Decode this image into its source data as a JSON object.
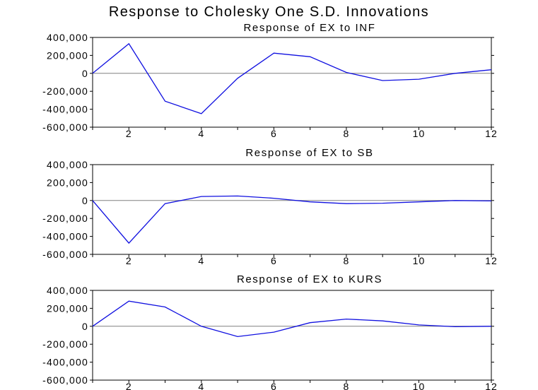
{
  "title": "Response to Cholesky One S.D. Innovations",
  "line_color": "#1010e0",
  "zero_line_color": "#808080",
  "chart_data": [
    {
      "type": "line",
      "title": "Response of EX to INF",
      "x": [
        1,
        2,
        3,
        4,
        5,
        6,
        7,
        8,
        9,
        10,
        11,
        12
      ],
      "series": [
        {
          "values": [
            0,
            330000,
            -310000,
            -450000,
            -55000,
            225000,
            185000,
            10000,
            -80000,
            -65000,
            0,
            40000
          ]
        }
      ],
      "ylim": [
        -600000,
        400000
      ],
      "yticks": [
        400000,
        200000,
        0,
        -200000,
        -400000,
        -600000
      ],
      "ytick_labels": [
        "400,000",
        "200,000",
        "0",
        "-200,000",
        "-400,000",
        "-600,000"
      ],
      "xticks": [
        2,
        4,
        6,
        8,
        10,
        12
      ],
      "xtick_labels": [
        "2",
        "4",
        "6",
        "8",
        "10",
        "12"
      ]
    },
    {
      "type": "line",
      "title": "Response of EX to SB",
      "x": [
        1,
        2,
        3,
        4,
        5,
        6,
        7,
        8,
        9,
        10,
        11,
        12
      ],
      "series": [
        {
          "values": [
            0,
            -475000,
            -35000,
            45000,
            50000,
            25000,
            -15000,
            -35000,
            -30000,
            -15000,
            0,
            -5000
          ]
        }
      ],
      "ylim": [
        -600000,
        400000
      ],
      "yticks": [
        400000,
        200000,
        0,
        -200000,
        -400000,
        -600000
      ],
      "ytick_labels": [
        "400,000",
        "200,000",
        "0",
        "-200,000",
        "-400,000",
        "-600,000"
      ],
      "xticks": [
        2,
        4,
        6,
        8,
        10,
        12
      ],
      "xtick_labels": [
        "2",
        "4",
        "6",
        "8",
        "10",
        "12"
      ]
    },
    {
      "type": "line",
      "title": "Response of EX to KURS",
      "x": [
        1,
        2,
        3,
        4,
        5,
        6,
        7,
        8,
        9,
        10,
        11,
        12
      ],
      "series": [
        {
          "values": [
            0,
            280000,
            215000,
            0,
            -115000,
            -65000,
            40000,
            80000,
            60000,
            15000,
            -5000,
            0
          ]
        }
      ],
      "ylim": [
        -600000,
        400000
      ],
      "yticks": [
        400000,
        200000,
        0,
        -200000,
        -400000,
        -600000
      ],
      "ytick_labels": [
        "400,000",
        "200,000",
        "0",
        "-200,000",
        "-400,000",
        "-600,000"
      ],
      "xticks": [
        2,
        4,
        6,
        8,
        10,
        12
      ],
      "xtick_labels": [
        "2",
        "4",
        "6",
        "8",
        "10",
        "12"
      ]
    }
  ]
}
